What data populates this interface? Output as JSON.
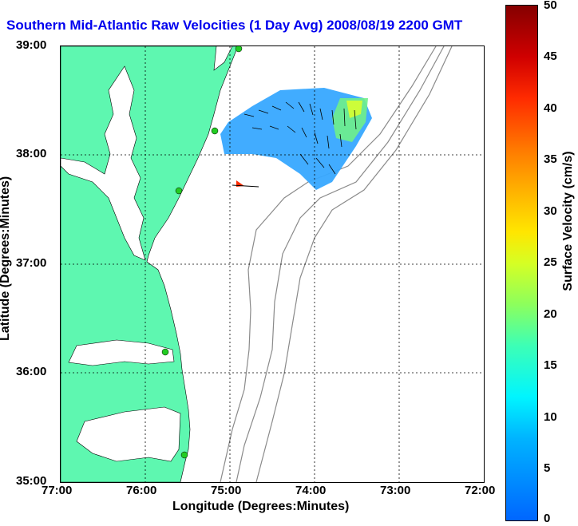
{
  "title": "Southern Mid-Atlantic Raw Velocities (1 Day Avg) 2008/08/19 2200 GMT",
  "x_axis": {
    "label": "Longitude (Degrees:Minutes)",
    "ticks": [
      "77:00",
      "76:00",
      "75:00",
      "74:00",
      "73:00",
      "72:00"
    ]
  },
  "y_axis": {
    "label": "Latitude (Degrees:Minutes)",
    "ticks": [
      "39:00",
      "38:00",
      "37:00",
      "36:00",
      "35:00"
    ]
  },
  "colorbar": {
    "label": "Surface Velocity (cm/s)",
    "ticks": [
      "50",
      "45",
      "40",
      "35",
      "30",
      "25",
      "20",
      "15",
      "10",
      "5",
      "0"
    ],
    "range": [
      0,
      50
    ]
  },
  "colors": {
    "land": "#5ef7b0",
    "bathymetry": "#8a8a8a",
    "title": "#0000ee",
    "station": "#22cc22"
  }
}
